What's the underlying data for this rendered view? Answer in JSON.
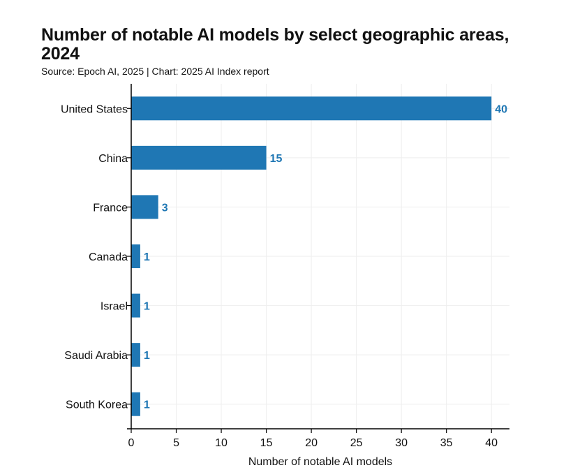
{
  "title": "Number of notable AI models by select geographic areas, 2024",
  "subtitle": "Source: Epoch AI, 2025 | Chart: 2025 AI Index report",
  "colors": {
    "bar": "#1f77b4",
    "value_label": "#1f77b4",
    "axis": "#000000",
    "grid": "#eeeeee"
  },
  "chart_data": {
    "type": "bar",
    "orientation": "horizontal",
    "categories": [
      "United States",
      "China",
      "France",
      "Canada",
      "Israel",
      "Saudi Arabia",
      "South Korea"
    ],
    "values": [
      40,
      15,
      3,
      1,
      1,
      1,
      1
    ],
    "data_labels": [
      "40",
      "15",
      "3",
      "1",
      "1",
      "1",
      "1"
    ],
    "xlabel": "Number of notable AI models",
    "ylabel": "",
    "xlim": [
      0,
      42
    ],
    "xticks": [
      0,
      5,
      10,
      15,
      20,
      25,
      30,
      35,
      40
    ],
    "grid": true,
    "legend": "none"
  }
}
